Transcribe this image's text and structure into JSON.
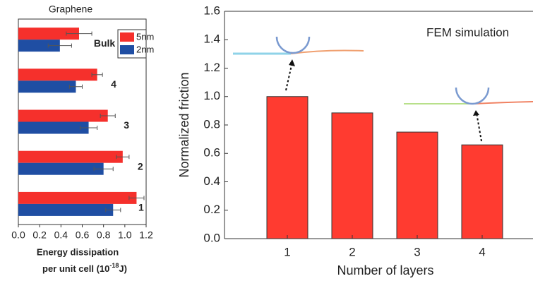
{
  "chart_data": [
    {
      "type": "hbar",
      "title": "Graphene",
      "categories": [
        "Bulk",
        "4",
        "3",
        "2",
        "1"
      ],
      "series": [
        {
          "name": "5nm",
          "color": "#f5302c",
          "values": [
            0.57,
            0.74,
            0.84,
            0.98,
            1.11
          ],
          "errors": [
            0.12,
            0.05,
            0.07,
            0.06,
            0.07
          ]
        },
        {
          "name": "2nm",
          "color": "#1f4ea3",
          "values": [
            0.39,
            0.54,
            0.66,
            0.8,
            0.89
          ],
          "errors": [
            0.11,
            0.06,
            0.08,
            0.09,
            0.07
          ]
        }
      ],
      "xlim": [
        0,
        1.2
      ],
      "xticks": [
        {
          "value": 0,
          "label": "0.0"
        },
        0.2,
        0.4,
        0.6,
        0.8,
        {
          "value": 1,
          "label": "1.0"
        },
        1.2
      ],
      "xlabel": [
        "Energy dissipation",
        "per unit cell (10",
        "-18",
        "J)"
      ],
      "legend": "upper right"
    },
    {
      "type": "bar",
      "title": "FEM simulation",
      "categories": [
        "1",
        "2",
        "3",
        "4"
      ],
      "values": [
        1.0,
        0.885,
        0.75,
        0.66
      ],
      "color": "#ff3b30",
      "ylim": [
        0,
        1.6
      ],
      "yticks": [
        {
          "value": 0,
          "label": "0.0"
        },
        0.2,
        0.4,
        0.6,
        0.8,
        {
          "value": 1,
          "label": "1.0"
        },
        1.2,
        1.4,
        1.6
      ],
      "xlabel": "Number of layers",
      "ylabel": "Normalized friction"
    }
  ]
}
